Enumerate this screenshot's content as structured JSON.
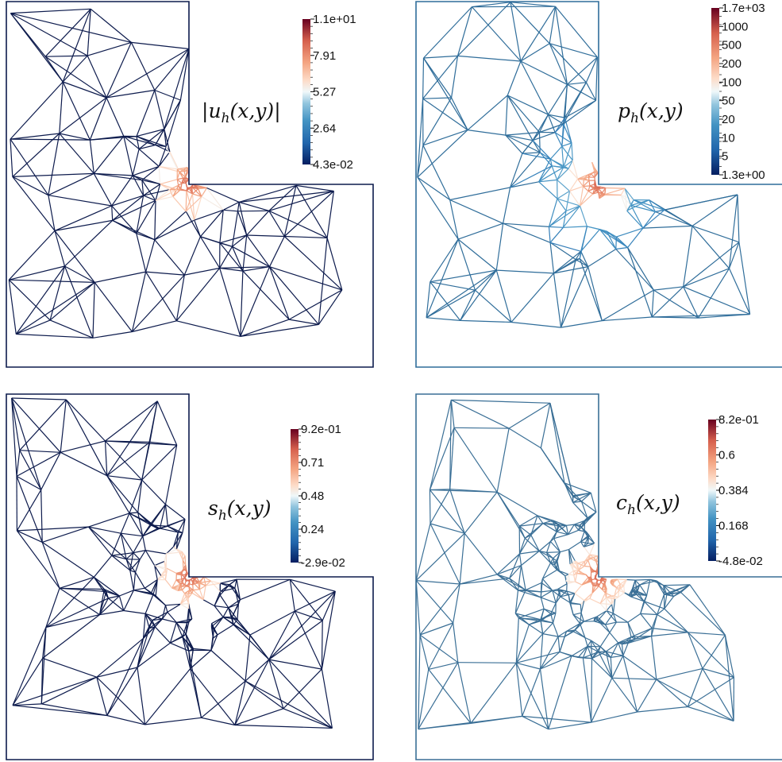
{
  "panels": [
    {
      "id": "u",
      "label_symbol": "u",
      "label_sub": "h",
      "label_args": "(x,y)",
      "label_abs": true,
      "edge_color": "#0d1b4d",
      "hot_color": "#b2182b",
      "ticks": [
        "1.1e+01",
        "7.91",
        "5.27",
        "2.64",
        "4.3e-02"
      ],
      "log_scale": false
    },
    {
      "id": "p",
      "label_symbol": "p",
      "label_sub": "h",
      "label_args": "(x,y)",
      "label_abs": false,
      "edge_color": "#2f6d9a",
      "hot_color": "#c0392b",
      "ticks": [
        "1.7e+03",
        "1000",
        "500",
        "200",
        "100",
        "50",
        "20",
        "10",
        "5",
        "1.3e+00"
      ],
      "log_scale": true
    },
    {
      "id": "s",
      "label_symbol": "s",
      "label_sub": "h",
      "label_args": "(x,y)",
      "label_abs": false,
      "edge_color": "#0d1b4d",
      "hot_color": "#b2182b",
      "ticks": [
        "9.2e-01",
        "0.71",
        "0.48",
        "0.24",
        "-2.9e-02"
      ],
      "log_scale": false
    },
    {
      "id": "c",
      "label_symbol": "c",
      "label_sub": "h",
      "label_args": "(x,y)",
      "label_abs": false,
      "edge_color": "#3a6f96",
      "hot_color": "#8b1a1a",
      "ticks": [
        "8.2e-01",
        "0.6",
        "0.384",
        "0.168",
        "-4.8e-02"
      ],
      "log_scale": false
    }
  ]
}
